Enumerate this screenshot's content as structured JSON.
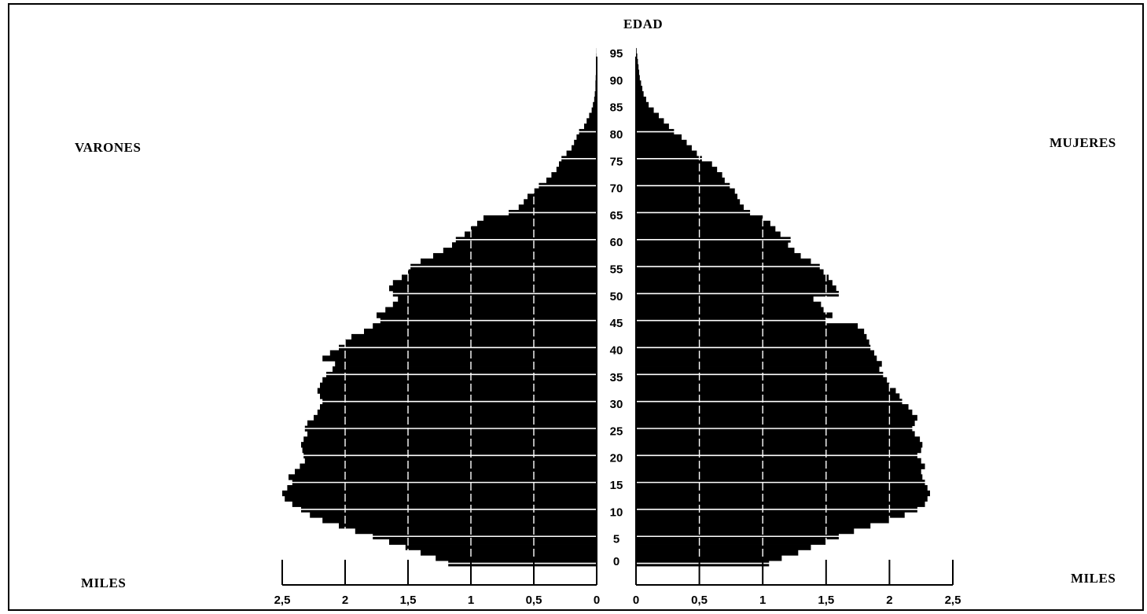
{
  "chart_data": {
    "type": "bar",
    "subtype": "population-pyramid",
    "age_axis_label": "EDAD",
    "left_group_label": "VARONES",
    "right_group_label": "MUJERES",
    "left_unit_label": "MILES",
    "right_unit_label": "MILES",
    "age_ticks": [
      "0",
      "5",
      "10",
      "15",
      "20",
      "25",
      "30",
      "35",
      "40",
      "45",
      "50",
      "55",
      "60",
      "65",
      "70",
      "75",
      "80",
      "85",
      "90",
      "95"
    ],
    "x_ticks_left": [
      "2,5",
      "2",
      "1,5",
      "1",
      "0,5",
      "0"
    ],
    "x_ticks_right": [
      "0",
      "0,5",
      "1",
      "1,5",
      "2",
      "2,5"
    ],
    "xlim": [
      0,
      2.5
    ],
    "ylim": [
      0,
      95
    ],
    "bar_color": "#000000",
    "grid_color": "#ffffff",
    "series": [
      {
        "name": "VARONES",
        "values": [
          1.18,
          1.28,
          1.4,
          1.52,
          1.65,
          1.78,
          1.92,
          2.05,
          2.18,
          2.28,
          2.35,
          2.42,
          2.48,
          2.5,
          2.46,
          2.42,
          2.45,
          2.4,
          2.36,
          2.32,
          2.33,
          2.34,
          2.35,
          2.33,
          2.3,
          2.32,
          2.3,
          2.25,
          2.22,
          2.2,
          2.18,
          2.2,
          2.22,
          2.2,
          2.18,
          2.15,
          2.1,
          2.08,
          2.18,
          2.12,
          2.05,
          2.0,
          1.95,
          1.85,
          1.78,
          1.72,
          1.75,
          1.68,
          1.62,
          1.58,
          1.62,
          1.65,
          1.62,
          1.55,
          1.5,
          1.48,
          1.4,
          1.3,
          1.22,
          1.15,
          1.12,
          1.05,
          1.0,
          0.95,
          0.9,
          0.7,
          0.62,
          0.58,
          0.55,
          0.5,
          0.46,
          0.4,
          0.36,
          0.32,
          0.3,
          0.28,
          0.24,
          0.2,
          0.18,
          0.16,
          0.14,
          0.1,
          0.08,
          0.06,
          0.04,
          0.03,
          0.02,
          0.015,
          0.01,
          0.01,
          0.008,
          0.006,
          0.004,
          0.003,
          0.002,
          0.001
        ]
      },
      {
        "name": "MUJERES",
        "values": [
          1.05,
          1.15,
          1.28,
          1.38,
          1.5,
          1.6,
          1.72,
          1.85,
          2.0,
          2.12,
          2.22,
          2.28,
          2.3,
          2.32,
          2.3,
          2.28,
          2.26,
          2.25,
          2.28,
          2.25,
          2.22,
          2.25,
          2.26,
          2.24,
          2.2,
          2.18,
          2.2,
          2.22,
          2.18,
          2.15,
          2.1,
          2.08,
          2.05,
          2.0,
          1.98,
          1.95,
          1.92,
          1.94,
          1.9,
          1.88,
          1.85,
          1.84,
          1.82,
          1.8,
          1.75,
          1.5,
          1.55,
          1.48,
          1.46,
          1.4,
          1.6,
          1.58,
          1.55,
          1.52,
          1.48,
          1.45,
          1.38,
          1.3,
          1.25,
          1.2,
          1.22,
          1.14,
          1.1,
          1.06,
          1.0,
          0.9,
          0.85,
          0.82,
          0.8,
          0.78,
          0.74,
          0.7,
          0.68,
          0.64,
          0.6,
          0.52,
          0.48,
          0.44,
          0.4,
          0.36,
          0.3,
          0.26,
          0.22,
          0.18,
          0.14,
          0.1,
          0.08,
          0.06,
          0.05,
          0.04,
          0.03,
          0.025,
          0.02,
          0.015,
          0.01,
          0.005
        ]
      }
    ]
  }
}
